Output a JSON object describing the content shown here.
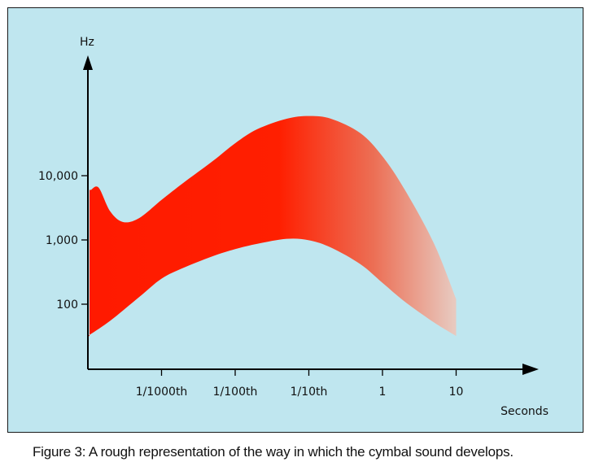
{
  "caption": "Figure 3: A rough representation of the way in which the cymbal sound develops.",
  "chart_data": {
    "type": "area",
    "title": "",
    "xlabel": "Seconds",
    "ylabel": "Hz",
    "y_scale": "log",
    "x_scale": "log",
    "x_ticks": [
      "1/1000th",
      "1/100th",
      "1/10th",
      "1",
      "10"
    ],
    "y_ticks": [
      "100",
      "1,000",
      "10,000"
    ],
    "grid": false,
    "legend": "none",
    "colors": {
      "background": "#bfe6ef",
      "fill_start": "#ff1a00",
      "fill_end": "#e8c9bf",
      "axis": "#000000"
    },
    "series": [
      {
        "bound": "upper",
        "x": [
          0.00011,
          0.00014,
          0.0002,
          0.0003,
          0.0005,
          0.001,
          0.002,
          0.005,
          0.01,
          0.02,
          0.05,
          0.1,
          0.2,
          0.5,
          1,
          2,
          5,
          10
        ],
        "y": [
          6000,
          6500,
          2800,
          1900,
          2200,
          4200,
          7800,
          17000,
          32000,
          53000,
          77000,
          85000,
          77000,
          46000,
          20000,
          6100,
          880,
          120
        ]
      },
      {
        "bound": "lower",
        "x": [
          0.0001,
          0.0002,
          0.0005,
          0.001,
          0.002,
          0.005,
          0.01,
          0.02,
          0.05,
          0.1,
          0.2,
          0.5,
          1,
          2,
          5,
          10
        ],
        "y": [
          32,
          55,
          130,
          250,
          370,
          560,
          720,
          870,
          1040,
          990,
          760,
          420,
          215,
          110,
          52,
          32
        ]
      }
    ]
  }
}
